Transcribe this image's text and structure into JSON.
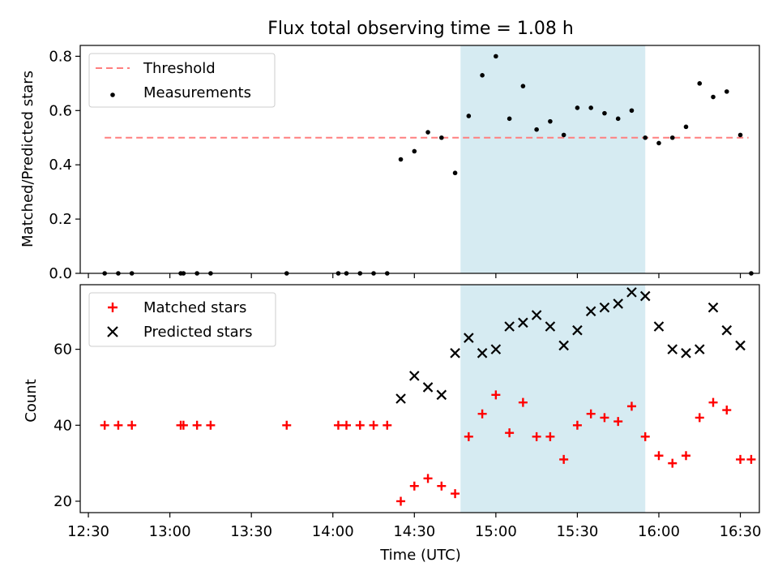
{
  "chart_data": [
    {
      "type": "scatter",
      "title": "Flux total observing time = 1.08 h",
      "ylabel": "Matched/Predicted stars",
      "xlabel": "",
      "xlim": [
        "12:27",
        "16:37"
      ],
      "ylim": [
        0,
        0.84
      ],
      "yticks": [
        0.0,
        0.2,
        0.4,
        0.6,
        0.8
      ],
      "ytick_labels": [
        "0.0",
        "0.2",
        "0.4",
        "0.6",
        "0.8"
      ],
      "shaded_span": [
        "14:47",
        "15:55"
      ],
      "legend": {
        "placement": "upper left",
        "entries": [
          "Threshold",
          "Measurements"
        ]
      },
      "series": [
        {
          "name": "Threshold",
          "kind": "line",
          "style": "dashed",
          "color": "#ff7f7f",
          "x": [
            "12:36",
            "16:33"
          ],
          "y": [
            0.5,
            0.5
          ]
        },
        {
          "name": "Measurements",
          "kind": "scatter",
          "marker": "dot",
          "color": "#000000",
          "x": [
            "12:36",
            "12:41",
            "12:46",
            "13:04",
            "13:05",
            "13:10",
            "13:15",
            "13:43",
            "14:02",
            "14:05",
            "14:10",
            "14:15",
            "14:20",
            "14:25",
            "14:30",
            "14:35",
            "14:40",
            "14:45",
            "14:50",
            "14:55",
            "15:00",
            "15:05",
            "15:10",
            "15:15",
            "15:20",
            "15:25",
            "15:30",
            "15:35",
            "15:40",
            "15:45",
            "15:50",
            "15:55",
            "16:00",
            "16:05",
            "16:10",
            "16:15",
            "16:20",
            "16:25",
            "16:30",
            "16:34"
          ],
          "y": [
            0,
            0,
            0,
            0,
            0,
            0,
            0,
            0,
            0,
            0,
            0,
            0,
            0,
            0.42,
            0.45,
            0.52,
            0.5,
            0.37,
            0.58,
            0.73,
            0.8,
            0.57,
            0.69,
            0.53,
            0.56,
            0.51,
            0.61,
            0.61,
            0.59,
            0.57,
            0.6,
            0.5,
            0.48,
            0.5,
            0.54,
            0.7,
            0.65,
            0.67,
            0.51,
            0
          ]
        }
      ]
    },
    {
      "type": "scatter",
      "title": "",
      "ylabel": "Count",
      "xlabel": "Time (UTC)",
      "xlim": [
        "12:27",
        "16:37"
      ],
      "ylim": [
        17,
        77
      ],
      "yticks": [
        20,
        40,
        60
      ],
      "ytick_labels": [
        "20",
        "40",
        "60"
      ],
      "xticks": [
        "12:30",
        "13:00",
        "13:30",
        "14:00",
        "14:30",
        "15:00",
        "15:30",
        "16:00",
        "16:30"
      ],
      "shaded_span": [
        "14:47",
        "15:55"
      ],
      "legend": {
        "placement": "upper left",
        "entries": [
          "Matched stars",
          "Predicted stars"
        ]
      },
      "series": [
        {
          "name": "Matched stars",
          "kind": "scatter",
          "marker": "plus",
          "color": "#ff0000",
          "x": [
            "12:36",
            "12:41",
            "12:46",
            "13:04",
            "13:05",
            "13:10",
            "13:15",
            "13:43",
            "14:02",
            "14:05",
            "14:10",
            "14:15",
            "14:20",
            "14:25",
            "14:30",
            "14:35",
            "14:40",
            "14:45",
            "14:50",
            "14:55",
            "15:00",
            "15:05",
            "15:10",
            "15:15",
            "15:20",
            "15:25",
            "15:30",
            "15:35",
            "15:40",
            "15:45",
            "15:50",
            "15:55",
            "16:00",
            "16:05",
            "16:10",
            "16:15",
            "16:20",
            "16:25",
            "16:30",
            "16:34"
          ],
          "y": [
            40,
            40,
            40,
            40,
            40,
            40,
            40,
            40,
            40,
            40,
            40,
            40,
            40,
            20,
            24,
            26,
            24,
            22,
            37,
            43,
            48,
            38,
            46,
            37,
            37,
            31,
            40,
            43,
            42,
            41,
            45,
            37,
            32,
            30,
            32,
            42,
            46,
            44,
            31,
            31
          ]
        },
        {
          "name": "Predicted stars",
          "kind": "scatter",
          "marker": "x",
          "color": "#000000",
          "x": [
            "14:25",
            "14:30",
            "14:35",
            "14:40",
            "14:45",
            "14:50",
            "14:55",
            "15:00",
            "15:05",
            "15:10",
            "15:15",
            "15:20",
            "15:25",
            "15:30",
            "15:35",
            "15:40",
            "15:45",
            "15:50",
            "15:55",
            "16:00",
            "16:05",
            "16:10",
            "16:15",
            "16:20",
            "16:25",
            "16:30"
          ],
          "y": [
            47,
            53,
            50,
            48,
            59,
            63,
            59,
            60,
            66,
            67,
            69,
            66,
            61,
            65,
            70,
            71,
            72,
            75,
            74,
            66,
            60,
            59,
            60,
            71,
            65,
            61
          ]
        }
      ]
    }
  ],
  "style": {
    "span_color": "#add8e6",
    "axis_color": "#000000"
  }
}
